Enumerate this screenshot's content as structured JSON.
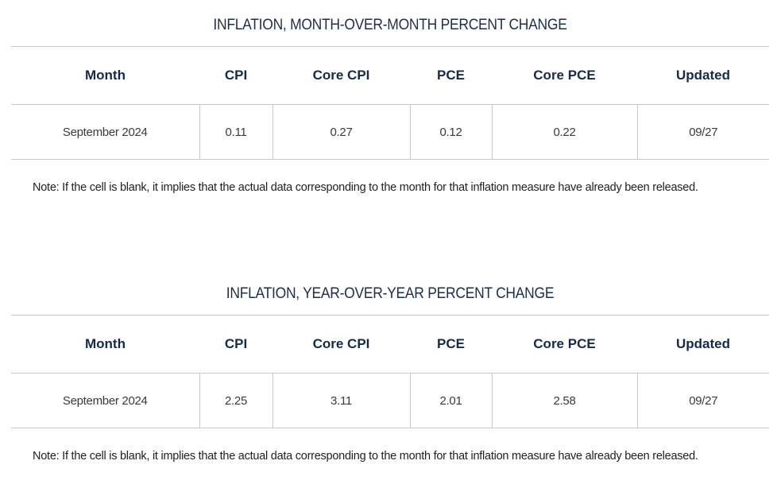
{
  "tables": [
    {
      "title": "INFLATION, MONTH-OVER-MONTH PERCENT CHANGE",
      "headers": [
        "Month",
        "CPI",
        "Core CPI",
        "PCE",
        "Core PCE",
        "Updated"
      ],
      "rows": [
        [
          "September 2024",
          "0.11",
          "0.27",
          "0.12",
          "0.22",
          "09/27"
        ]
      ],
      "note": "Note: If the cell is blank, it implies that the actual data corresponding to the month for that inflation measure have already been released."
    },
    {
      "title": "INFLATION, YEAR-OVER-YEAR PERCENT CHANGE",
      "headers": [
        "Month",
        "CPI",
        "Core CPI",
        "PCE",
        "Core PCE",
        "Updated"
      ],
      "rows": [
        [
          "September 2024",
          "2.25",
          "3.11",
          "2.01",
          "2.58",
          "09/27"
        ]
      ],
      "note": "Note: If the cell is blank, it implies that the actual data corresponding to the month for that inflation measure have already been released."
    }
  ]
}
